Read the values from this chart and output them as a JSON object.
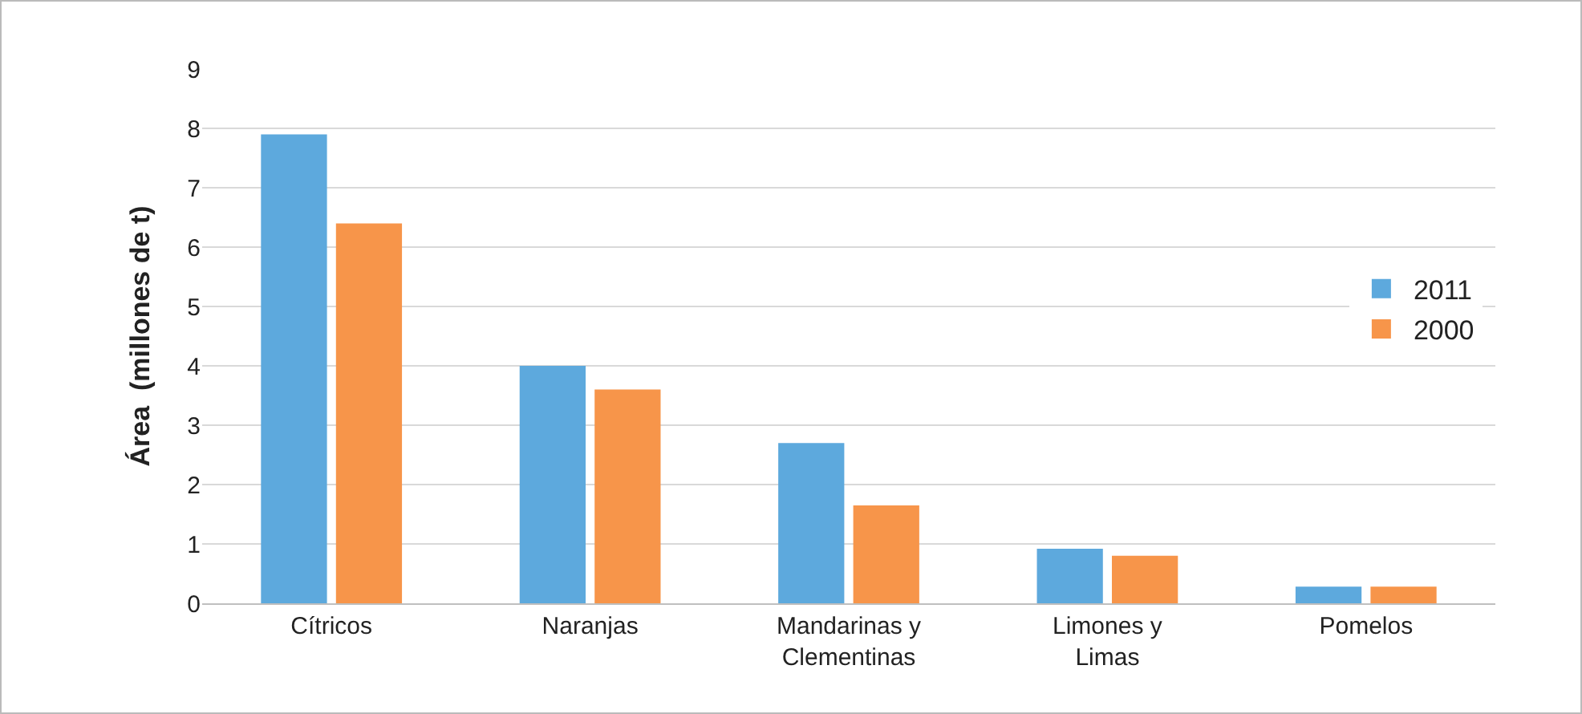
{
  "chart_data": {
    "type": "bar",
    "ylabel": "Área  (millones de t)",
    "categories": [
      "Cítricos",
      "Naranjas",
      "Mandarinas y Clementinas",
      "Limones y Limas",
      "Pomelos"
    ],
    "series": [
      {
        "name": "2011",
        "color": "#5da9dd",
        "values": [
          7.9,
          4.0,
          2.7,
          0.92,
          0.28
        ]
      },
      {
        "name": "2000",
        "color": "#f7954a",
        "values": [
          6.4,
          3.6,
          1.65,
          0.8,
          0.28
        ]
      }
    ],
    "ylim": [
      0,
      9
    ],
    "yticks": [
      0,
      1,
      2,
      3,
      4,
      5,
      6,
      7,
      8,
      9
    ],
    "grid": "y",
    "legend": "right"
  }
}
